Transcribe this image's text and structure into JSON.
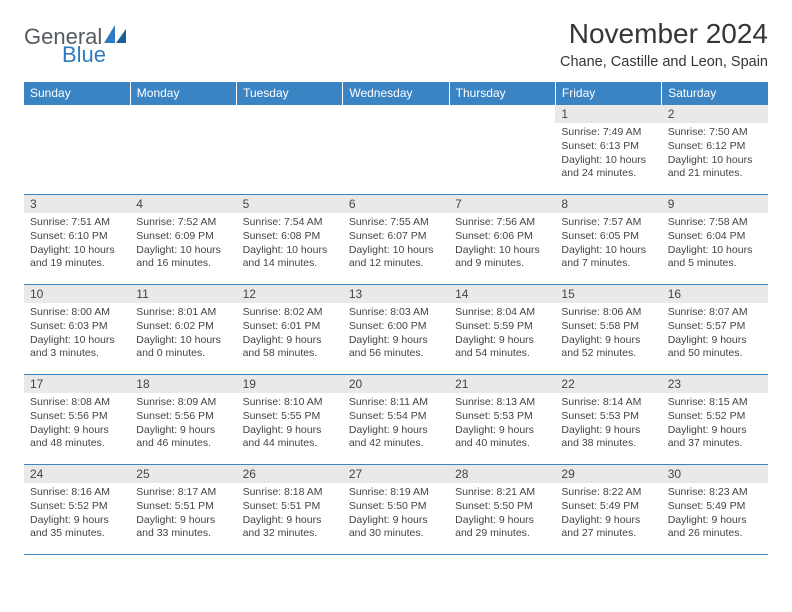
{
  "brand": {
    "general": "General",
    "blue": "Blue"
  },
  "title": "November 2024",
  "location": "Chane, Castille and Leon, Spain",
  "colors": {
    "header_bg": "#3b84c4",
    "rule": "#3b84c4",
    "daynum_bg": "#e9e9e9",
    "text": "#444444",
    "logo_gray": "#555b60",
    "logo_blue": "#2f7bbf"
  },
  "fonts": {
    "title_pt": 28,
    "location_pt": 14.5,
    "dow_pt": 12,
    "daynum_pt": 12,
    "body_pt": 10.5
  },
  "days_of_week": [
    "Sunday",
    "Monday",
    "Tuesday",
    "Wednesday",
    "Thursday",
    "Friday",
    "Saturday"
  ],
  "weeks": [
    [
      null,
      null,
      null,
      null,
      null,
      {
        "n": "1",
        "sunrise": "Sunrise: 7:49 AM",
        "sunset": "Sunset: 6:13 PM",
        "daylight": "Daylight: 10 hours and 24 minutes."
      },
      {
        "n": "2",
        "sunrise": "Sunrise: 7:50 AM",
        "sunset": "Sunset: 6:12 PM",
        "daylight": "Daylight: 10 hours and 21 minutes."
      }
    ],
    [
      {
        "n": "3",
        "sunrise": "Sunrise: 7:51 AM",
        "sunset": "Sunset: 6:10 PM",
        "daylight": "Daylight: 10 hours and 19 minutes."
      },
      {
        "n": "4",
        "sunrise": "Sunrise: 7:52 AM",
        "sunset": "Sunset: 6:09 PM",
        "daylight": "Daylight: 10 hours and 16 minutes."
      },
      {
        "n": "5",
        "sunrise": "Sunrise: 7:54 AM",
        "sunset": "Sunset: 6:08 PM",
        "daylight": "Daylight: 10 hours and 14 minutes."
      },
      {
        "n": "6",
        "sunrise": "Sunrise: 7:55 AM",
        "sunset": "Sunset: 6:07 PM",
        "daylight": "Daylight: 10 hours and 12 minutes."
      },
      {
        "n": "7",
        "sunrise": "Sunrise: 7:56 AM",
        "sunset": "Sunset: 6:06 PM",
        "daylight": "Daylight: 10 hours and 9 minutes."
      },
      {
        "n": "8",
        "sunrise": "Sunrise: 7:57 AM",
        "sunset": "Sunset: 6:05 PM",
        "daylight": "Daylight: 10 hours and 7 minutes."
      },
      {
        "n": "9",
        "sunrise": "Sunrise: 7:58 AM",
        "sunset": "Sunset: 6:04 PM",
        "daylight": "Daylight: 10 hours and 5 minutes."
      }
    ],
    [
      {
        "n": "10",
        "sunrise": "Sunrise: 8:00 AM",
        "sunset": "Sunset: 6:03 PM",
        "daylight": "Daylight: 10 hours and 3 minutes."
      },
      {
        "n": "11",
        "sunrise": "Sunrise: 8:01 AM",
        "sunset": "Sunset: 6:02 PM",
        "daylight": "Daylight: 10 hours and 0 minutes."
      },
      {
        "n": "12",
        "sunrise": "Sunrise: 8:02 AM",
        "sunset": "Sunset: 6:01 PM",
        "daylight": "Daylight: 9 hours and 58 minutes."
      },
      {
        "n": "13",
        "sunrise": "Sunrise: 8:03 AM",
        "sunset": "Sunset: 6:00 PM",
        "daylight": "Daylight: 9 hours and 56 minutes."
      },
      {
        "n": "14",
        "sunrise": "Sunrise: 8:04 AM",
        "sunset": "Sunset: 5:59 PM",
        "daylight": "Daylight: 9 hours and 54 minutes."
      },
      {
        "n": "15",
        "sunrise": "Sunrise: 8:06 AM",
        "sunset": "Sunset: 5:58 PM",
        "daylight": "Daylight: 9 hours and 52 minutes."
      },
      {
        "n": "16",
        "sunrise": "Sunrise: 8:07 AM",
        "sunset": "Sunset: 5:57 PM",
        "daylight": "Daylight: 9 hours and 50 minutes."
      }
    ],
    [
      {
        "n": "17",
        "sunrise": "Sunrise: 8:08 AM",
        "sunset": "Sunset: 5:56 PM",
        "daylight": "Daylight: 9 hours and 48 minutes."
      },
      {
        "n": "18",
        "sunrise": "Sunrise: 8:09 AM",
        "sunset": "Sunset: 5:56 PM",
        "daylight": "Daylight: 9 hours and 46 minutes."
      },
      {
        "n": "19",
        "sunrise": "Sunrise: 8:10 AM",
        "sunset": "Sunset: 5:55 PM",
        "daylight": "Daylight: 9 hours and 44 minutes."
      },
      {
        "n": "20",
        "sunrise": "Sunrise: 8:11 AM",
        "sunset": "Sunset: 5:54 PM",
        "daylight": "Daylight: 9 hours and 42 minutes."
      },
      {
        "n": "21",
        "sunrise": "Sunrise: 8:13 AM",
        "sunset": "Sunset: 5:53 PM",
        "daylight": "Daylight: 9 hours and 40 minutes."
      },
      {
        "n": "22",
        "sunrise": "Sunrise: 8:14 AM",
        "sunset": "Sunset: 5:53 PM",
        "daylight": "Daylight: 9 hours and 38 minutes."
      },
      {
        "n": "23",
        "sunrise": "Sunrise: 8:15 AM",
        "sunset": "Sunset: 5:52 PM",
        "daylight": "Daylight: 9 hours and 37 minutes."
      }
    ],
    [
      {
        "n": "24",
        "sunrise": "Sunrise: 8:16 AM",
        "sunset": "Sunset: 5:52 PM",
        "daylight": "Daylight: 9 hours and 35 minutes."
      },
      {
        "n": "25",
        "sunrise": "Sunrise: 8:17 AM",
        "sunset": "Sunset: 5:51 PM",
        "daylight": "Daylight: 9 hours and 33 minutes."
      },
      {
        "n": "26",
        "sunrise": "Sunrise: 8:18 AM",
        "sunset": "Sunset: 5:51 PM",
        "daylight": "Daylight: 9 hours and 32 minutes."
      },
      {
        "n": "27",
        "sunrise": "Sunrise: 8:19 AM",
        "sunset": "Sunset: 5:50 PM",
        "daylight": "Daylight: 9 hours and 30 minutes."
      },
      {
        "n": "28",
        "sunrise": "Sunrise: 8:21 AM",
        "sunset": "Sunset: 5:50 PM",
        "daylight": "Daylight: 9 hours and 29 minutes."
      },
      {
        "n": "29",
        "sunrise": "Sunrise: 8:22 AM",
        "sunset": "Sunset: 5:49 PM",
        "daylight": "Daylight: 9 hours and 27 minutes."
      },
      {
        "n": "30",
        "sunrise": "Sunrise: 8:23 AM",
        "sunset": "Sunset: 5:49 PM",
        "daylight": "Daylight: 9 hours and 26 minutes."
      }
    ]
  ]
}
